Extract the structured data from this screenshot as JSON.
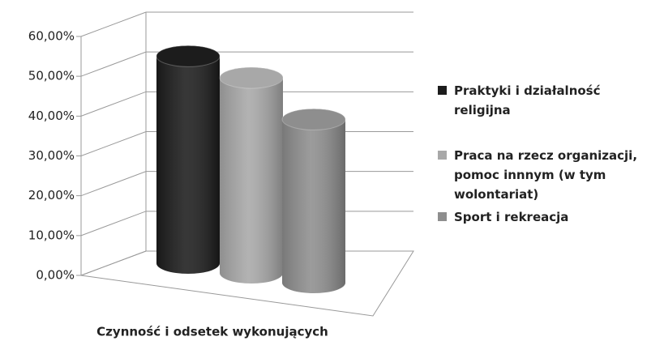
{
  "chart_data": {
    "type": "bar3d",
    "x_label": "Czynność i odsetek wykonujących",
    "categories": [
      null
    ],
    "series": [
      {
        "name": "Praktyki i działalność religijna",
        "color": "#1c1c1c",
        "values": [
          52
        ]
      },
      {
        "name": "Praca na rzecz organizacji, pomoc innnym (w tym wolontariat)",
        "color": "#a8a8a8",
        "values": [
          49
        ]
      },
      {
        "name": "Sport i rekreacja",
        "color": "#8e8e8e",
        "values": [
          41
        ]
      }
    ],
    "ylim": [
      0,
      60
    ],
    "yticks": [
      {
        "value": 0,
        "label": "0,00%"
      },
      {
        "value": 10,
        "label": "10,00%"
      },
      {
        "value": 20,
        "label": "20,00%"
      },
      {
        "value": 30,
        "label": "30,00%"
      },
      {
        "value": 40,
        "label": "40,00%"
      },
      {
        "value": 50,
        "label": "50,00%"
      },
      {
        "value": 60,
        "label": "60,00%"
      }
    ],
    "grid": true,
    "legend": "right"
  }
}
